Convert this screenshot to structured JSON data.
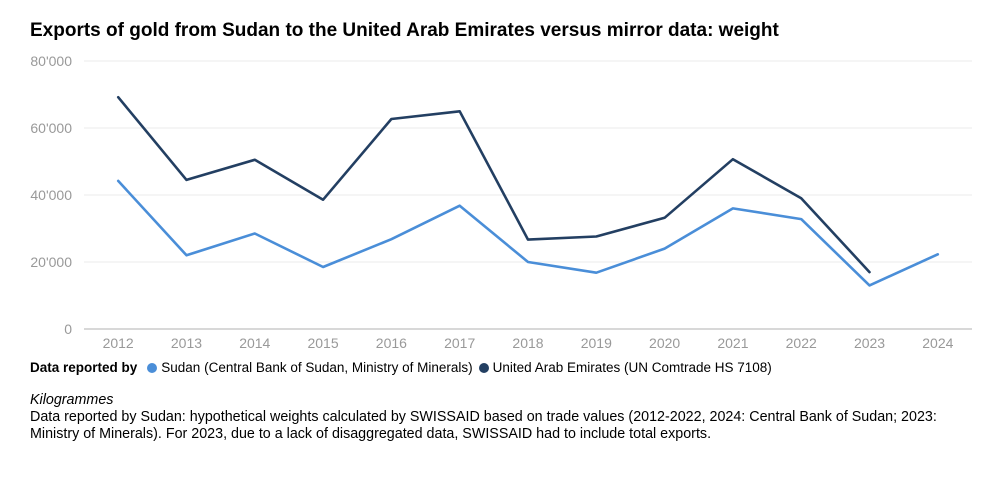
{
  "chart_data": {
    "type": "line",
    "title": "Exports of gold from Sudan to the United Arab Emirates versus mirror data: weight",
    "categories": [
      "2012",
      "2013",
      "2014",
      "2015",
      "2016",
      "2017",
      "2018",
      "2019",
      "2020",
      "2021",
      "2022",
      "2023",
      "2024"
    ],
    "ylim": [
      0,
      80000
    ],
    "yticks": [
      "0",
      "20'000",
      "40'000",
      "60'000",
      "80'000"
    ],
    "ytick_values": [
      0,
      20000,
      40000,
      60000,
      80000
    ],
    "series": [
      {
        "name": "Sudan (Central Bank of Sudan, Ministry of Minerals)",
        "color": "#4a8ed8",
        "values": [
          44200,
          22000,
          28500,
          18500,
          26800,
          36800,
          20000,
          16800,
          24000,
          36000,
          32800,
          13000,
          22300
        ]
      },
      {
        "name": "United Arab Emirates (UN Comtrade HS 7108)",
        "color": "#233f62",
        "values": [
          69200,
          44500,
          50500,
          38600,
          62700,
          65000,
          26700,
          27600,
          33200,
          50700,
          39000,
          17000,
          null
        ]
      }
    ],
    "legend_title": "Data reported by",
    "unit_label": "Kilogrammes",
    "note": "Data reported by Sudan: hypothetical weights calculated by SWISSAID based on trade values (2012-2022, 2024: Central Bank of Sudan; 2023: Ministry of Minerals). For 2023, due to a lack of disaggregated data, SWISSAID had to include total exports."
  }
}
